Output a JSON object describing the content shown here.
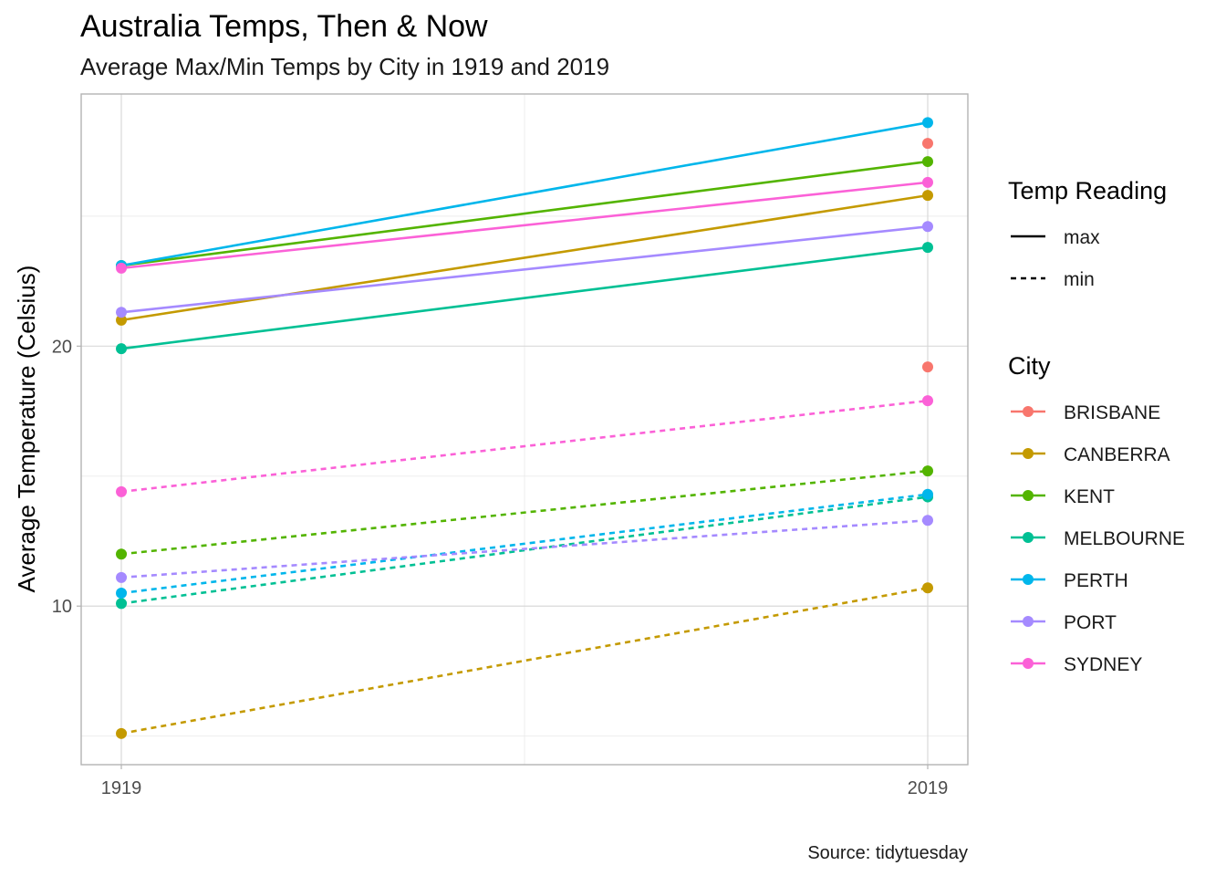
{
  "chart_data": {
    "type": "line",
    "title": "Australia Temps, Then & Now",
    "subtitle": "Average Max/Min Temps by City in 1919 and 2019",
    "xlabel": "",
    "ylabel": "Average Temperature (Celsius)",
    "caption": "Source: tidytuesday",
    "x": [
      "1919",
      "2019"
    ],
    "ylim": [
      3.9,
      29.7
    ],
    "yticks": [
      10,
      20
    ],
    "grid": true,
    "legend_position": "right",
    "legends": {
      "linetype": {
        "title": "Temp Reading",
        "items": [
          "max",
          "min"
        ]
      },
      "color": {
        "title": "City",
        "items": [
          "BRISBANE",
          "CANBERRA",
          "KENT",
          "MELBOURNE",
          "PERTH",
          "PORT",
          "SYDNEY"
        ]
      }
    },
    "colors": {
      "BRISBANE": "#F8766D",
      "CANBERRA": "#C49A00",
      "KENT": "#53B400",
      "MELBOURNE": "#00C094",
      "PERTH": "#00B6EB",
      "PORT": "#A58AFF",
      "SYDNEY": "#FB61D7"
    },
    "series": [
      {
        "city": "BRISBANE",
        "reading": "max",
        "values": [
          null,
          27.8
        ]
      },
      {
        "city": "BRISBANE",
        "reading": "min",
        "values": [
          null,
          19.2
        ]
      },
      {
        "city": "CANBERRA",
        "reading": "max",
        "values": [
          21.0,
          25.8
        ]
      },
      {
        "city": "CANBERRA",
        "reading": "min",
        "values": [
          5.1,
          10.7
        ]
      },
      {
        "city": "KENT",
        "reading": "max",
        "values": [
          23.1,
          27.1
        ]
      },
      {
        "city": "KENT",
        "reading": "min",
        "values": [
          12.0,
          15.2
        ]
      },
      {
        "city": "MELBOURNE",
        "reading": "max",
        "values": [
          19.9,
          23.8
        ]
      },
      {
        "city": "MELBOURNE",
        "reading": "min",
        "values": [
          10.1,
          14.2
        ]
      },
      {
        "city": "PERTH",
        "reading": "max",
        "values": [
          23.1,
          28.6
        ]
      },
      {
        "city": "PERTH",
        "reading": "min",
        "values": [
          10.5,
          14.3
        ]
      },
      {
        "city": "PORT",
        "reading": "max",
        "values": [
          21.3,
          24.6
        ]
      },
      {
        "city": "PORT",
        "reading": "min",
        "values": [
          11.1,
          13.3
        ]
      },
      {
        "city": "SYDNEY",
        "reading": "max",
        "values": [
          23.0,
          26.3
        ]
      },
      {
        "city": "SYDNEY",
        "reading": "min",
        "values": [
          14.4,
          17.9
        ]
      }
    ]
  }
}
